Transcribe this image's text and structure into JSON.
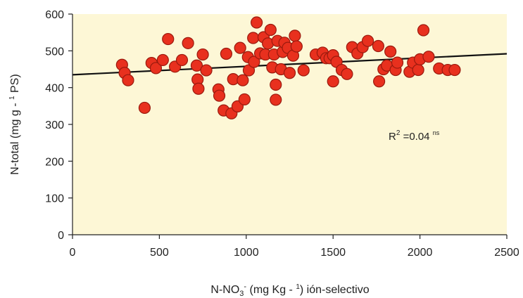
{
  "chart_data": {
    "type": "scatter",
    "xlabel": "N-NO3- (mg Kg - 1) ión-selectivo",
    "ylabel": "N-total (mg g - 1 PS)",
    "xlim": [
      0,
      2500
    ],
    "ylim": [
      0,
      600
    ],
    "xticks": [
      "0",
      "500",
      "1000",
      "1500",
      "2000",
      "2500"
    ],
    "yticks": [
      "0",
      "100",
      "200",
      "300",
      "400",
      "500",
      "600"
    ],
    "annotation": "R2 =0.04 ns",
    "trendline": {
      "x": [
        0,
        2500
      ],
      "y": [
        435,
        492
      ]
    },
    "colors": {
      "plot_bg": "#fdf7d6",
      "marker_fill": "#e8301e",
      "marker_edge": "#9a1a0e",
      "line": "#111111"
    },
    "points": [
      {
        "x": 285,
        "y": 462
      },
      {
        "x": 300,
        "y": 440
      },
      {
        "x": 320,
        "y": 420
      },
      {
        "x": 415,
        "y": 345
      },
      {
        "x": 455,
        "y": 467
      },
      {
        "x": 480,
        "y": 453
      },
      {
        "x": 520,
        "y": 475
      },
      {
        "x": 550,
        "y": 532
      },
      {
        "x": 590,
        "y": 457
      },
      {
        "x": 630,
        "y": 475
      },
      {
        "x": 665,
        "y": 521
      },
      {
        "x": 715,
        "y": 460
      },
      {
        "x": 720,
        "y": 422
      },
      {
        "x": 725,
        "y": 397
      },
      {
        "x": 750,
        "y": 490
      },
      {
        "x": 770,
        "y": 447
      },
      {
        "x": 840,
        "y": 395
      },
      {
        "x": 845,
        "y": 378
      },
      {
        "x": 870,
        "y": 338
      },
      {
        "x": 885,
        "y": 492
      },
      {
        "x": 915,
        "y": 330
      },
      {
        "x": 925,
        "y": 423
      },
      {
        "x": 950,
        "y": 349
      },
      {
        "x": 965,
        "y": 508
      },
      {
        "x": 980,
        "y": 420
      },
      {
        "x": 990,
        "y": 368
      },
      {
        "x": 1010,
        "y": 483
      },
      {
        "x": 1015,
        "y": 447
      },
      {
        "x": 1040,
        "y": 535
      },
      {
        "x": 1045,
        "y": 470
      },
      {
        "x": 1060,
        "y": 577
      },
      {
        "x": 1080,
        "y": 493
      },
      {
        "x": 1100,
        "y": 537
      },
      {
        "x": 1110,
        "y": 490
      },
      {
        "x": 1125,
        "y": 520
      },
      {
        "x": 1140,
        "y": 557
      },
      {
        "x": 1150,
        "y": 455
      },
      {
        "x": 1160,
        "y": 490
      },
      {
        "x": 1170,
        "y": 408
      },
      {
        "x": 1170,
        "y": 367
      },
      {
        "x": 1180,
        "y": 527
      },
      {
        "x": 1200,
        "y": 450
      },
      {
        "x": 1210,
        "y": 497
      },
      {
        "x": 1220,
        "y": 522
      },
      {
        "x": 1240,
        "y": 508
      },
      {
        "x": 1250,
        "y": 440
      },
      {
        "x": 1270,
        "y": 487
      },
      {
        "x": 1280,
        "y": 541
      },
      {
        "x": 1290,
        "y": 512
      },
      {
        "x": 1330,
        "y": 447
      },
      {
        "x": 1400,
        "y": 490
      },
      {
        "x": 1440,
        "y": 495
      },
      {
        "x": 1460,
        "y": 480
      },
      {
        "x": 1480,
        "y": 480
      },
      {
        "x": 1500,
        "y": 488
      },
      {
        "x": 1500,
        "y": 417
      },
      {
        "x": 1520,
        "y": 470
      },
      {
        "x": 1550,
        "y": 448
      },
      {
        "x": 1580,
        "y": 437
      },
      {
        "x": 1610,
        "y": 510
      },
      {
        "x": 1640,
        "y": 493
      },
      {
        "x": 1670,
        "y": 510
      },
      {
        "x": 1700,
        "y": 527
      },
      {
        "x": 1760,
        "y": 513
      },
      {
        "x": 1765,
        "y": 417
      },
      {
        "x": 1790,
        "y": 450
      },
      {
        "x": 1810,
        "y": 460
      },
      {
        "x": 1830,
        "y": 498
      },
      {
        "x": 1860,
        "y": 448
      },
      {
        "x": 1870,
        "y": 468
      },
      {
        "x": 1940,
        "y": 443
      },
      {
        "x": 1960,
        "y": 468
      },
      {
        "x": 1990,
        "y": 448
      },
      {
        "x": 2000,
        "y": 477
      },
      {
        "x": 2020,
        "y": 556
      },
      {
        "x": 2050,
        "y": 484
      },
      {
        "x": 2110,
        "y": 452
      },
      {
        "x": 2160,
        "y": 448
      },
      {
        "x": 2200,
        "y": 448
      }
    ]
  }
}
